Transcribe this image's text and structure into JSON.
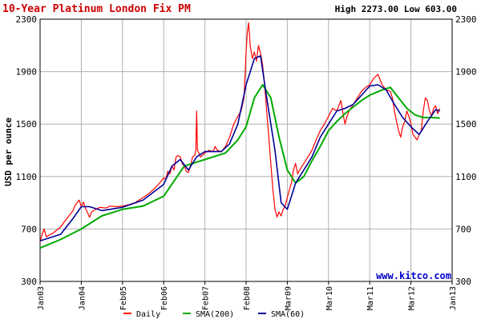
{
  "chart_data": {
    "type": "line",
    "title": "10-Year Platinum London Fix PM",
    "stats": "High 2273.00 Low 603.00",
    "ylabel": "USD per ounce",
    "xlabel": "",
    "ylim": [
      300,
      2300
    ],
    "yticks": [
      300,
      700,
      1100,
      1500,
      1900,
      2300
    ],
    "xticks": [
      "Jan03",
      "Jan04",
      "Feb05",
      "Feb06",
      "Feb07",
      "Feb08",
      "Mar09",
      "Mar10",
      "Mar11",
      "Mar12",
      "Jan13"
    ],
    "watermark": "www.kitco.com",
    "grid": true,
    "legend_position": "bottom",
    "series": [
      {
        "name": "Daily",
        "color": "#ff0000",
        "points": [
          [
            0,
            600
          ],
          [
            0.05,
            660
          ],
          [
            0.1,
            700
          ],
          [
            0.15,
            640
          ],
          [
            0.2,
            650
          ],
          [
            0.3,
            665
          ],
          [
            0.4,
            690
          ],
          [
            0.5,
            715
          ],
          [
            0.6,
            760
          ],
          [
            0.7,
            800
          ],
          [
            0.8,
            840
          ],
          [
            0.85,
            880
          ],
          [
            0.95,
            920
          ],
          [
            1.0,
            870
          ],
          [
            1.05,
            905
          ],
          [
            1.1,
            860
          ],
          [
            1.2,
            790
          ],
          [
            1.25,
            830
          ],
          [
            1.35,
            850
          ],
          [
            1.45,
            865
          ],
          [
            1.6,
            860
          ],
          [
            1.7,
            875
          ],
          [
            1.85,
            870
          ],
          [
            2.0,
            875
          ],
          [
            2.15,
            885
          ],
          [
            2.3,
            900
          ],
          [
            2.45,
            930
          ],
          [
            2.6,
            960
          ],
          [
            2.75,
            1000
          ],
          [
            2.9,
            1050
          ],
          [
            3.0,
            1090
          ],
          [
            3.05,
            1080
          ],
          [
            3.1,
            1140
          ],
          [
            3.15,
            1120
          ],
          [
            3.2,
            1180
          ],
          [
            3.25,
            1150
          ],
          [
            3.3,
            1250
          ],
          [
            3.35,
            1260
          ],
          [
            3.4,
            1250
          ],
          [
            3.45,
            1200
          ],
          [
            3.5,
            1180
          ],
          [
            3.55,
            1140
          ],
          [
            3.6,
            1130
          ],
          [
            3.65,
            1180
          ],
          [
            3.7,
            1250
          ],
          [
            3.75,
            1260
          ],
          [
            3.78,
            1300
          ],
          [
            3.8,
            1600
          ],
          [
            3.82,
            1300
          ],
          [
            3.9,
            1250
          ],
          [
            4.0,
            1280
          ],
          [
            4.1,
            1300
          ],
          [
            4.2,
            1290
          ],
          [
            4.25,
            1330
          ],
          [
            4.3,
            1300
          ],
          [
            4.4,
            1290
          ],
          [
            4.5,
            1330
          ],
          [
            4.6,
            1400
          ],
          [
            4.7,
            1500
          ],
          [
            4.8,
            1560
          ],
          [
            4.88,
            1600
          ],
          [
            4.95,
            1700
          ],
          [
            5.0,
            2050
          ],
          [
            5.03,
            2200
          ],
          [
            5.06,
            2273
          ],
          [
            5.1,
            2100
          ],
          [
            5.15,
            2000
          ],
          [
            5.2,
            2050
          ],
          [
            5.25,
            1980
          ],
          [
            5.3,
            2100
          ],
          [
            5.35,
            2040
          ],
          [
            5.4,
            1950
          ],
          [
            5.45,
            1800
          ],
          [
            5.5,
            1600
          ],
          [
            5.55,
            1400
          ],
          [
            5.6,
            1200
          ],
          [
            5.65,
            1000
          ],
          [
            5.7,
            850
          ],
          [
            5.75,
            790
          ],
          [
            5.8,
            830
          ],
          [
            5.85,
            800
          ],
          [
            5.9,
            850
          ],
          [
            5.95,
            880
          ],
          [
            6.0,
            940
          ],
          [
            6.05,
            1000
          ],
          [
            6.1,
            1050
          ],
          [
            6.15,
            1150
          ],
          [
            6.2,
            1200
          ],
          [
            6.25,
            1120
          ],
          [
            6.3,
            1150
          ],
          [
            6.4,
            1200
          ],
          [
            6.5,
            1250
          ],
          [
            6.6,
            1300
          ],
          [
            6.7,
            1380
          ],
          [
            6.8,
            1450
          ],
          [
            6.9,
            1500
          ],
          [
            7.0,
            1560
          ],
          [
            7.1,
            1620
          ],
          [
            7.2,
            1600
          ],
          [
            7.3,
            1680
          ],
          [
            7.35,
            1580
          ],
          [
            7.4,
            1500
          ],
          [
            7.45,
            1560
          ],
          [
            7.5,
            1600
          ],
          [
            7.6,
            1650
          ],
          [
            7.7,
            1700
          ],
          [
            7.8,
            1750
          ],
          [
            7.9,
            1780
          ],
          [
            8.0,
            1800
          ],
          [
            8.1,
            1850
          ],
          [
            8.2,
            1880
          ],
          [
            8.3,
            1800
          ],
          [
            8.4,
            1760
          ],
          [
            8.5,
            1750
          ],
          [
            8.55,
            1700
          ],
          [
            8.6,
            1600
          ],
          [
            8.65,
            1520
          ],
          [
            8.7,
            1450
          ],
          [
            8.75,
            1400
          ],
          [
            8.8,
            1480
          ],
          [
            8.85,
            1520
          ],
          [
            8.9,
            1600
          ],
          [
            8.95,
            1560
          ],
          [
            9.0,
            1500
          ],
          [
            9.05,
            1420
          ],
          [
            9.1,
            1400
          ],
          [
            9.15,
            1380
          ],
          [
            9.2,
            1420
          ],
          [
            9.25,
            1450
          ],
          [
            9.3,
            1600
          ],
          [
            9.35,
            1700
          ],
          [
            9.4,
            1680
          ],
          [
            9.45,
            1600
          ],
          [
            9.5,
            1560
          ],
          [
            9.55,
            1620
          ],
          [
            9.6,
            1640
          ],
          [
            9.65,
            1580
          ],
          [
            9.7,
            1620
          ]
        ]
      },
      {
        "name": "SMA(200)",
        "color": "#00aa00",
        "points": [
          [
            0,
            555
          ],
          [
            0.5,
            620
          ],
          [
            1.0,
            700
          ],
          [
            1.5,
            800
          ],
          [
            2.0,
            850
          ],
          [
            2.5,
            875
          ],
          [
            3.0,
            950
          ],
          [
            3.5,
            1180
          ],
          [
            4.0,
            1230
          ],
          [
            4.5,
            1280
          ],
          [
            4.8,
            1380
          ],
          [
            5.0,
            1480
          ],
          [
            5.2,
            1700
          ],
          [
            5.4,
            1800
          ],
          [
            5.6,
            1700
          ],
          [
            5.8,
            1400
          ],
          [
            6.0,
            1150
          ],
          [
            6.2,
            1050
          ],
          [
            6.4,
            1100
          ],
          [
            6.6,
            1220
          ],
          [
            6.8,
            1330
          ],
          [
            7.0,
            1450
          ],
          [
            7.2,
            1520
          ],
          [
            7.4,
            1580
          ],
          [
            7.6,
            1630
          ],
          [
            7.8,
            1680
          ],
          [
            8.0,
            1720
          ],
          [
            8.3,
            1760
          ],
          [
            8.5,
            1780
          ],
          [
            8.7,
            1700
          ],
          [
            8.9,
            1620
          ],
          [
            9.1,
            1570
          ],
          [
            9.3,
            1550
          ],
          [
            9.5,
            1550
          ],
          [
            9.7,
            1545
          ]
        ]
      },
      {
        "name": "SMA(60)",
        "color": "#000099",
        "points": [
          [
            0,
            610
          ],
          [
            0.5,
            660
          ],
          [
            0.8,
            780
          ],
          [
            1.0,
            870
          ],
          [
            1.2,
            870
          ],
          [
            1.5,
            840
          ],
          [
            2.0,
            865
          ],
          [
            2.5,
            920
          ],
          [
            3.0,
            1040
          ],
          [
            3.2,
            1180
          ],
          [
            3.4,
            1230
          ],
          [
            3.6,
            1150
          ],
          [
            3.8,
            1250
          ],
          [
            4.0,
            1290
          ],
          [
            4.2,
            1290
          ],
          [
            4.4,
            1290
          ],
          [
            4.6,
            1350
          ],
          [
            4.8,
            1500
          ],
          [
            5.0,
            1800
          ],
          [
            5.2,
            2000
          ],
          [
            5.35,
            2020
          ],
          [
            5.5,
            1700
          ],
          [
            5.7,
            1300
          ],
          [
            5.85,
            900
          ],
          [
            6.0,
            850
          ],
          [
            6.2,
            1050
          ],
          [
            6.4,
            1150
          ],
          [
            6.6,
            1250
          ],
          [
            6.8,
            1400
          ],
          [
            7.0,
            1500
          ],
          [
            7.2,
            1600
          ],
          [
            7.4,
            1620
          ],
          [
            7.6,
            1650
          ],
          [
            7.8,
            1720
          ],
          [
            8.0,
            1790
          ],
          [
            8.2,
            1800
          ],
          [
            8.4,
            1760
          ],
          [
            8.6,
            1650
          ],
          [
            8.8,
            1550
          ],
          [
            9.0,
            1480
          ],
          [
            9.2,
            1420
          ],
          [
            9.4,
            1520
          ],
          [
            9.6,
            1610
          ],
          [
            9.7,
            1600
          ]
        ]
      }
    ]
  }
}
